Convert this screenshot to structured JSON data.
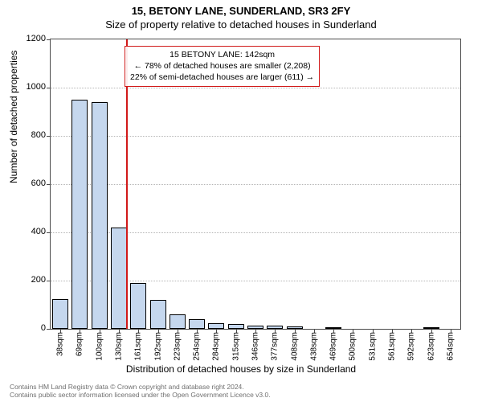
{
  "header": {
    "line1": "15, BETONY LANE, SUNDERLAND, SR3 2FY",
    "line2": "Size of property relative to detached houses in Sunderland"
  },
  "yaxis": {
    "label": "Number of detached properties",
    "min": 0,
    "max": 1200,
    "ticks": [
      0,
      200,
      400,
      600,
      800,
      1000,
      1200
    ]
  },
  "xaxis": {
    "label": "Distribution of detached houses by size in Sunderland",
    "categories": [
      "38sqm",
      "69sqm",
      "100sqm",
      "130sqm",
      "161sqm",
      "192sqm",
      "223sqm",
      "254sqm",
      "284sqm",
      "315sqm",
      "346sqm",
      "377sqm",
      "408sqm",
      "438sqm",
      "469sqm",
      "500sqm",
      "531sqm",
      "561sqm",
      "592sqm",
      "623sqm",
      "654sqm"
    ]
  },
  "series": {
    "type": "histogram",
    "bar_fill": "#c5d7ee",
    "bar_stroke": "#000000",
    "values": [
      125,
      950,
      940,
      420,
      190,
      120,
      60,
      40,
      25,
      20,
      15,
      15,
      10,
      0,
      5,
      0,
      0,
      0,
      0,
      5,
      0
    ]
  },
  "reference": {
    "x_value_sqm": 142,
    "color": "#d11919"
  },
  "annotation": {
    "line1": "15 BETONY LANE: 142sqm",
    "line2": "← 78% of detached houses are smaller (2,208)",
    "line3": "22% of semi-detached houses are larger (611) →",
    "border_color": "#d11919"
  },
  "style": {
    "background": "#ffffff",
    "grid_color": "#b5b5b5",
    "axis_color": "#4a4a4a",
    "title_fontsize": 13,
    "axis_label_fontsize": 12,
    "tick_fontsize": 11
  },
  "footer": {
    "line1": "Contains HM Land Registry data © Crown copyright and database right 2024.",
    "line2": "Contains public sector information licensed under the Open Government Licence v3.0."
  }
}
